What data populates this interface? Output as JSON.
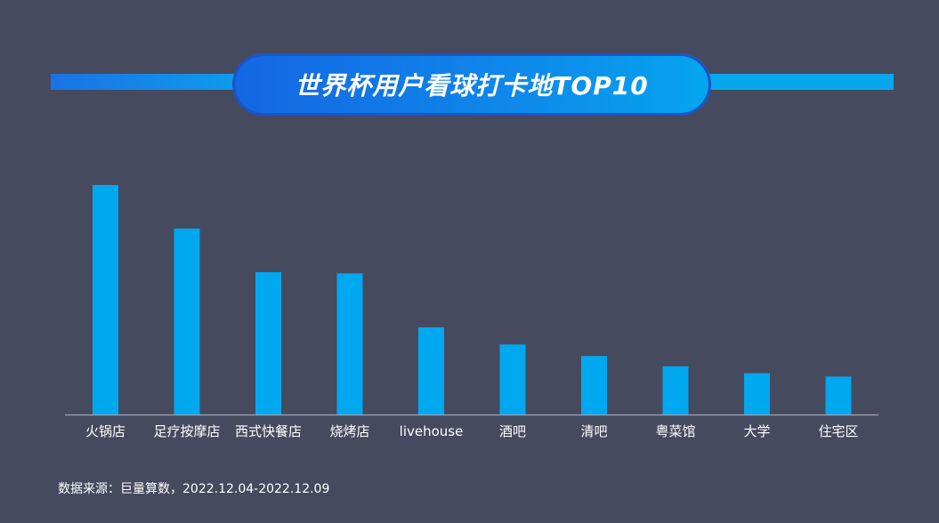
{
  "title": "世界杯用户看球打卡地TOP10",
  "source": "数据来源：巨量算数，2022.12.04-2022.12.09",
  "colors": {
    "background": "#464a5e",
    "bar": "#00a8f0",
    "axis": "#9ea3b5",
    "label": "#ffffff"
  },
  "chart_data": {
    "type": "bar",
    "title": "世界杯用户看球打卡地TOP10",
    "categories": [
      "火锅店",
      "足疗按摩店",
      "西式快餐店",
      "烧烤店",
      "livehouse",
      "酒吧",
      "清吧",
      "粤菜馆",
      "大学",
      "住宅区"
    ],
    "values": [
      100,
      81,
      62,
      61.5,
      38,
      30.5,
      25.5,
      21,
      18,
      16.5
    ],
    "ylim": [
      0,
      100
    ],
    "grid": false,
    "legend": "none",
    "xlabel": "",
    "ylabel": ""
  }
}
